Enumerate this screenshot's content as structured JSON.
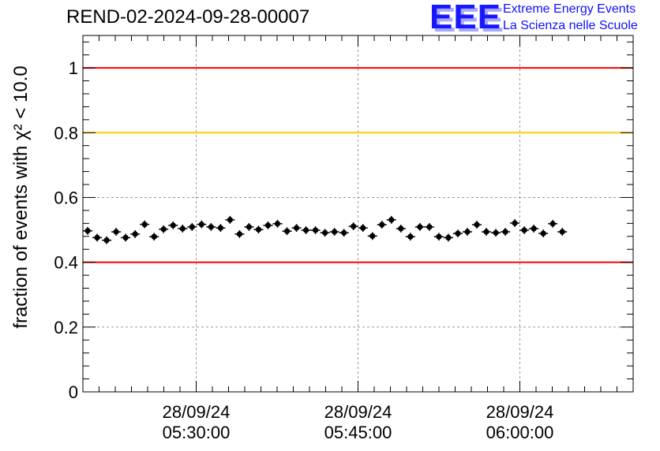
{
  "run_id": "REND-02-2024-09-28-00007",
  "logo": {
    "letters": "EEE",
    "line1": "Extreme Energy Events",
    "line2": "La Scienza nelle Scuole",
    "color": "#1818ff"
  },
  "chart_data": {
    "type": "scatter",
    "title": "REND-02-2024-09-28-00007",
    "ylabel": "fraction of events with χ² < 10.0",
    "ylim": [
      0,
      1.1
    ],
    "yticks": [
      0,
      0.2,
      0.4,
      0.6,
      0.8,
      1
    ],
    "ytick_labels": [
      "0",
      "0.2",
      "0.4",
      "0.6",
      "0.8",
      "1"
    ],
    "xlim_minutes": [
      0,
      68
    ],
    "xticks": [
      {
        "minutes": 14,
        "date": "28/09/24",
        "time": "05:30:00"
      },
      {
        "minutes": 34,
        "date": "28/09/24",
        "time": "05:45:00"
      },
      {
        "minutes": 54,
        "date": "28/09/24",
        "time": "06:00:00"
      }
    ],
    "grid": true,
    "reference_lines": [
      {
        "y": 1.0,
        "color": "#ff0000"
      },
      {
        "y": 0.8,
        "color": "#ffcc00"
      },
      {
        "y": 0.4,
        "color": "#ff0000"
      }
    ],
    "series": [
      {
        "color": "#000000",
        "x_step_minutes": 1.173,
        "x_start_minutes": 0.59,
        "values": [
          0.497,
          0.476,
          0.468,
          0.494,
          0.476,
          0.487,
          0.517,
          0.479,
          0.502,
          0.514,
          0.504,
          0.509,
          0.517,
          0.509,
          0.506,
          0.531,
          0.487,
          0.509,
          0.501,
          0.514,
          0.519,
          0.496,
          0.506,
          0.499,
          0.499,
          0.491,
          0.494,
          0.491,
          0.511,
          0.506,
          0.481,
          0.516,
          0.531,
          0.504,
          0.479,
          0.509,
          0.509,
          0.479,
          0.476,
          0.489,
          0.494,
          0.516,
          0.494,
          0.491,
          0.494,
          0.521,
          0.499,
          0.504,
          0.489,
          0.519,
          0.494
        ],
        "y_error": 0.012
      }
    ]
  }
}
